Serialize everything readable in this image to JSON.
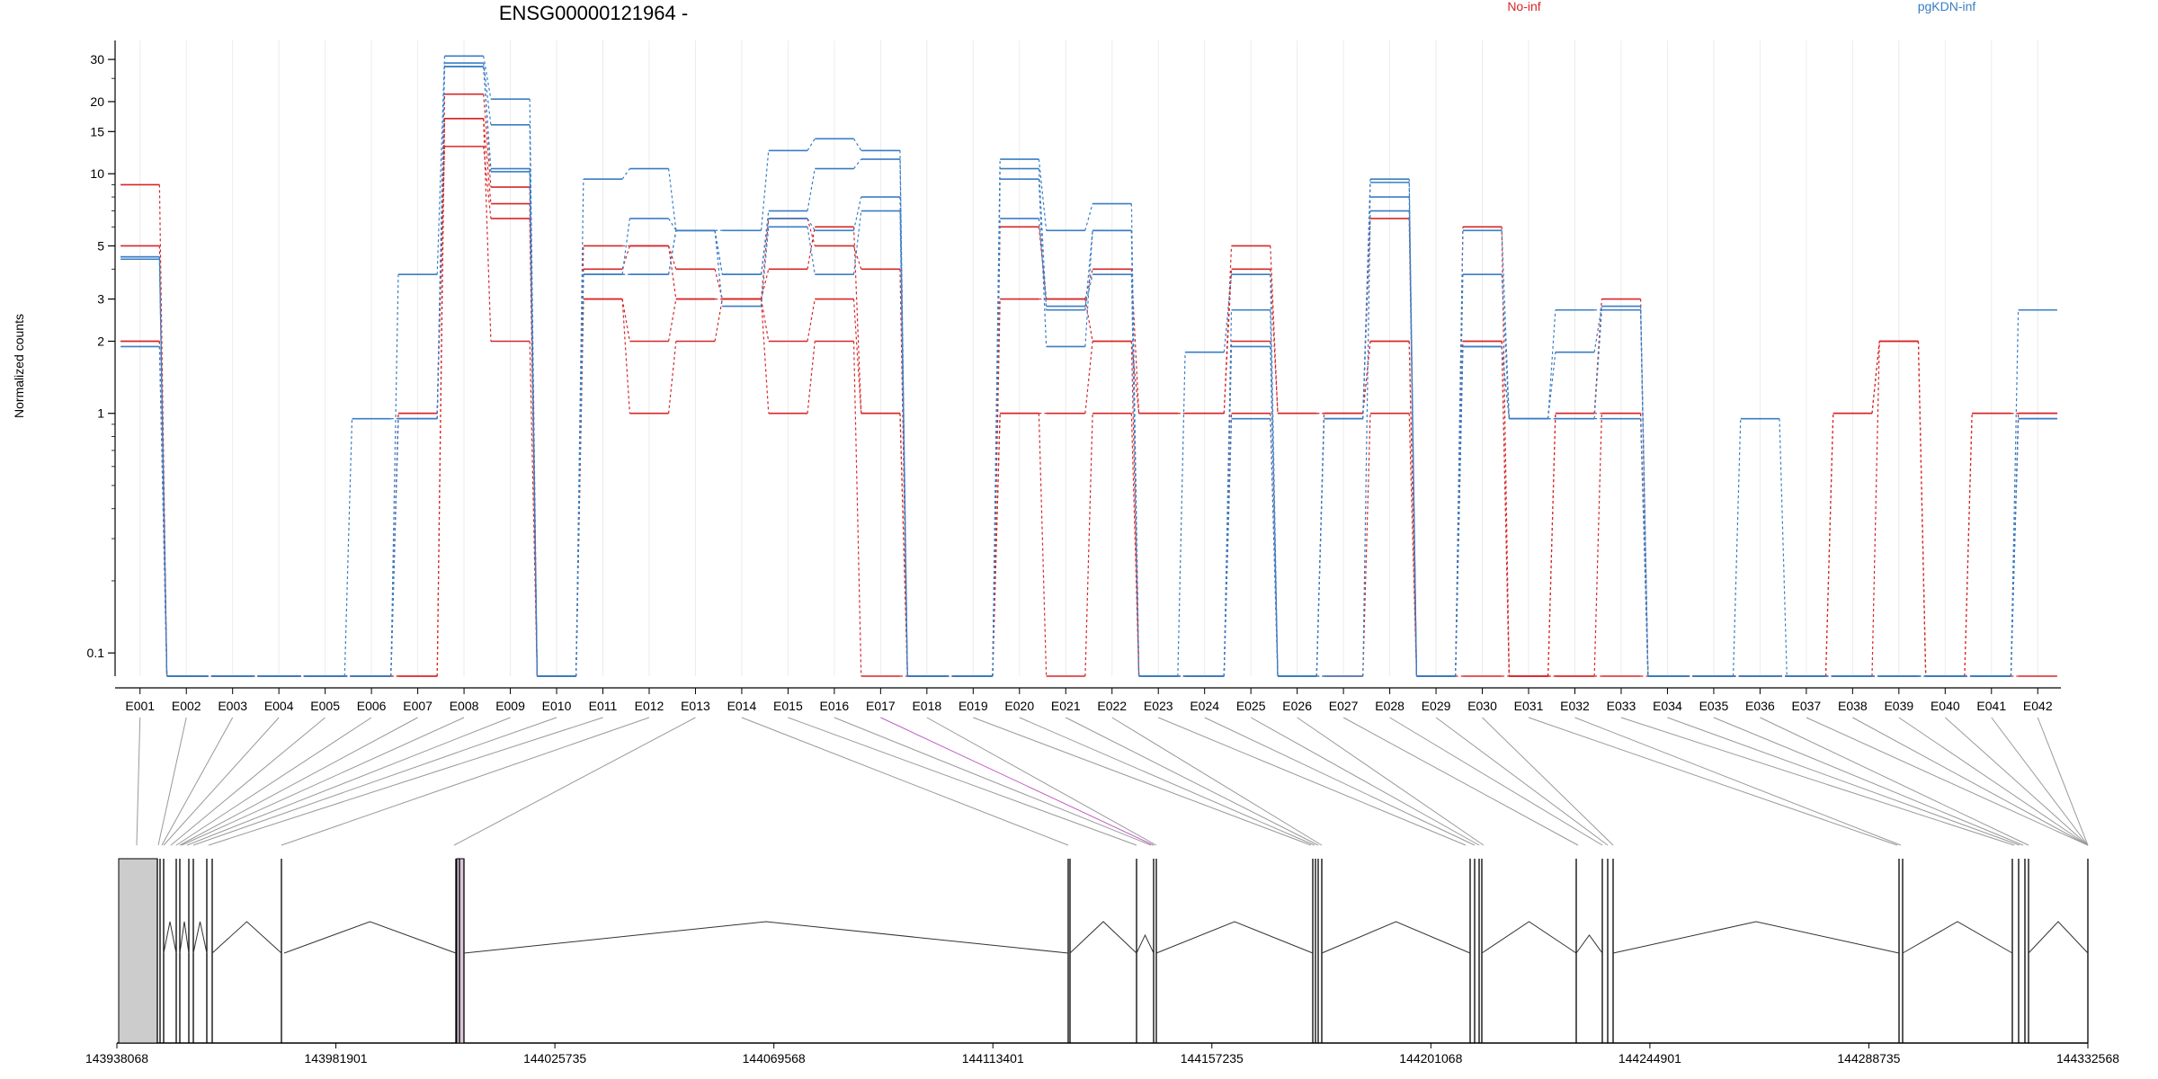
{
  "chart_data": {
    "type": "line",
    "title": "ENSG00000121964 -",
    "ylabel": "Normalized counts",
    "xlabel": "",
    "y_scale": "log",
    "ylim": [
      0.08,
      36
    ],
    "y_ticks": [
      0.1,
      1,
      2,
      3,
      5,
      10,
      15,
      20,
      30
    ],
    "y_tick_labels": [
      "0.1",
      "1",
      "2",
      "3",
      "5",
      "10",
      "15",
      "20",
      "30"
    ],
    "grid": "vertical, light",
    "legend": [
      {
        "name": "No-inf",
        "color": "#d62728",
        "placement": "top-center"
      },
      {
        "name": "pgKDN-inf",
        "color": "#3a7dc4",
        "placement": "top-right"
      }
    ],
    "categories": [
      "E001",
      "E002",
      "E003",
      "E004",
      "E005",
      "E006",
      "E007",
      "E008",
      "E009",
      "E010",
      "E011",
      "E012",
      "E013",
      "E014",
      "E015",
      "E016",
      "E017",
      "E018",
      "E019",
      "E020",
      "E021",
      "E022",
      "E023",
      "E024",
      "E025",
      "E026",
      "E027",
      "E028",
      "E029",
      "E030",
      "E031",
      "E032",
      "E033",
      "E034",
      "E035",
      "E036",
      "E037",
      "E038",
      "E039",
      "E040",
      "E041",
      "E042"
    ],
    "series": [
      {
        "group": "No-inf",
        "values": [
          9,
          0.08,
          0.08,
          0.08,
          0.08,
          0.08,
          0.08,
          21.5,
          8.8,
          0.08,
          5,
          5,
          4,
          3,
          6.5,
          5,
          4,
          0.08,
          0.08,
          6,
          3,
          4,
          1,
          1,
          5,
          1,
          1,
          6.5,
          0.08,
          6,
          0.08,
          1,
          3,
          0.08,
          0.08,
          0.08,
          0.08,
          1,
          2,
          0.08,
          1,
          1
        ]
      },
      {
        "group": "No-inf",
        "values": [
          5,
          0.08,
          0.08,
          0.08,
          0.08,
          0.08,
          1,
          17,
          7.5,
          0.08,
          4,
          5,
          3,
          3,
          4,
          6,
          1,
          0.08,
          0.08,
          3,
          3,
          2,
          1,
          1,
          4,
          1,
          1,
          2,
          0.08,
          2,
          0.08,
          1,
          1,
          0.08,
          0.08,
          0.08,
          0.08,
          1,
          2,
          0.08,
          1,
          1
        ]
      },
      {
        "group": "No-inf",
        "values": [
          2,
          0.08,
          0.08,
          0.08,
          0.08,
          0.08,
          1,
          13,
          6.5,
          0.08,
          3,
          2,
          3,
          3,
          2,
          3,
          1,
          0.08,
          0.08,
          1,
          1,
          2,
          0.08,
          0.08,
          2,
          0.08,
          1,
          2,
          0.08,
          2,
          0.08,
          0.08,
          1,
          0.08,
          0.08,
          0.08,
          0.08,
          0.08,
          2,
          0.08,
          0.08,
          1
        ]
      },
      {
        "group": "No-inf",
        "values": [
          2,
          0.08,
          0.08,
          0.08,
          0.08,
          0.08,
          0.08,
          17,
          2,
          0.08,
          3,
          1,
          2,
          3,
          1,
          2,
          0.08,
          0.08,
          0.08,
          1,
          0.08,
          1,
          0.08,
          0.08,
          1,
          0.08,
          0.08,
          1,
          0.08,
          0.08,
          0.08,
          0.08,
          0.08,
          0.08,
          0.08,
          0.08,
          0.08,
          0.08,
          0.08,
          0.08,
          0.08,
          0.08
        ]
      },
      {
        "group": "pgKDN-inf",
        "values": [
          4.5,
          0.08,
          0.08,
          0.08,
          0.08,
          0.08,
          3.8,
          31,
          20.5,
          0.08,
          9.5,
          10.5,
          5.8,
          5.8,
          12.5,
          14,
          12.5,
          0.08,
          0.08,
          11.5,
          5.8,
          7.5,
          0.08,
          1.8,
          3.8,
          0.08,
          0.95,
          9.5,
          0.08,
          5.8,
          0.95,
          2.7,
          2.7,
          0.08,
          0.08,
          0.95,
          0.08,
          0.08,
          0.08,
          0.08,
          0.08,
          2.7
        ]
      },
      {
        "group": "pgKDN-inf",
        "values": [
          4.5,
          0.08,
          0.08,
          0.08,
          0.08,
          0.95,
          0.95,
          29,
          16,
          0.08,
          3.8,
          6.5,
          5.8,
          3.8,
          7,
          10.5,
          11.5,
          0.08,
          0.08,
          10.5,
          2.7,
          5.8,
          0.08,
          0.08,
          2.7,
          0.08,
          0.95,
          9.2,
          0.08,
          3.8,
          0.95,
          1.8,
          2.8,
          0.08,
          0.08,
          0.08,
          0.08,
          0.08,
          0.08,
          0.08,
          0.08,
          0.95
        ]
      },
      {
        "group": "pgKDN-inf",
        "values": [
          4.4,
          0.08,
          0.08,
          0.08,
          0.08,
          0.08,
          0.95,
          28,
          10.5,
          0.08,
          3.8,
          3.8,
          5.8,
          3.8,
          6.5,
          5.8,
          8,
          0.08,
          0.08,
          9.5,
          1.9,
          5.8,
          0.08,
          0.08,
          1.9,
          0.08,
          0.95,
          8,
          0.08,
          1.9,
          0.95,
          0.95,
          2.7,
          0.08,
          0.08,
          0.08,
          0.08,
          0.08,
          0.08,
          0.08,
          0.08,
          0.95
        ]
      },
      {
        "group": "pgKDN-inf",
        "values": [
          1.9,
          0.08,
          0.08,
          0.08,
          0.08,
          0.08,
          0.95,
          28,
          10.2,
          0.08,
          3.8,
          3.8,
          5.8,
          2.8,
          6,
          3.8,
          7,
          0.08,
          0.08,
          6.5,
          2.8,
          3.8,
          0.08,
          0.08,
          0.95,
          0.08,
          0.08,
          7,
          0.08,
          1.9,
          0.95,
          0.95,
          0.95,
          0.08,
          0.08,
          0.08,
          0.08,
          0.08,
          0.08,
          0.08,
          0.08,
          0.95
        ]
      }
    ]
  },
  "gene_model": {
    "positions": [
      "143938068",
      "143981901",
      "144025735",
      "144069568",
      "144113401",
      "144157235",
      "144201068",
      "144244901",
      "144288735",
      "144332568"
    ]
  },
  "colors": {
    "no_inf": "#d62728",
    "pgkdn_inf": "#3a7dc4",
    "highlight_link": "#c15ec1",
    "exon_fill": "#cccccc"
  }
}
